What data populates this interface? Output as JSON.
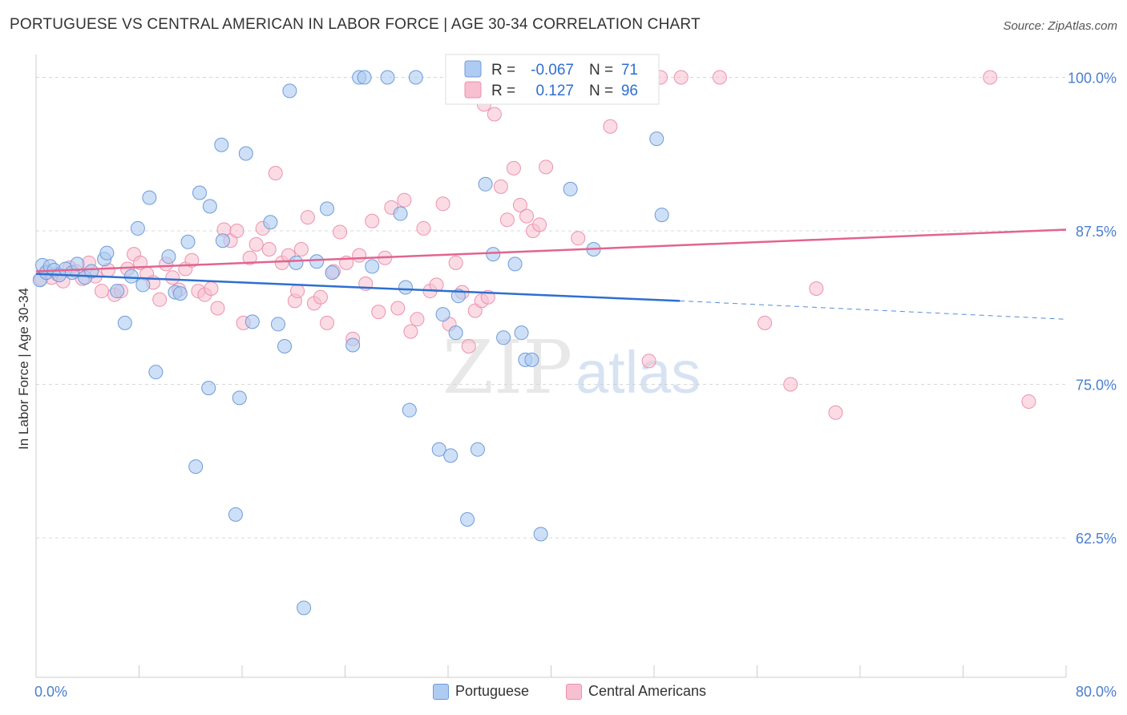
{
  "title": "PORTUGUESE VS CENTRAL AMERICAN IN LABOR FORCE | AGE 30-34 CORRELATION CHART",
  "source": "Source: ZipAtlas.com",
  "watermark": {
    "zip": "ZIP",
    "atlas": "atlas"
  },
  "colors": {
    "portuguese_fill": "#aecbf1",
    "portuguese_stroke": "#6f9bd8",
    "portuguese_line": "#2e6fd1",
    "central_fill": "#f7bfd0",
    "central_stroke": "#ec92ad",
    "central_line": "#e2648f",
    "tick_label": "#4a7fd0",
    "grid": "#d8d8d8"
  },
  "legend": {
    "rows": [
      {
        "r_label": "R =",
        "r_value": "-0.067",
        "n_label": "N =",
        "n_value": "71"
      },
      {
        "r_label": "R =",
        "r_value": "0.127",
        "n_label": "N =",
        "n_value": "96"
      }
    ]
  },
  "chart_data": {
    "type": "scatter",
    "title": "PORTUGUESE VS CENTRAL AMERICAN IN LABOR FORCE | AGE 30-34 CORRELATION CHART",
    "xlabel": "",
    "ylabel": "In Labor Force | Age 30-34",
    "xlim": [
      0,
      80
    ],
    "ylim": [
      52.5,
      101.5
    ],
    "x_tick_labels": [
      "0.0%",
      "80.0%"
    ],
    "y_ticks": [
      62.5,
      75.0,
      87.5,
      100.0
    ],
    "y_tick_labels": [
      "62.5%",
      "75.0%",
      "87.5%",
      "100.0%"
    ],
    "grid": "horizontal dashed",
    "legend_position": "top-center",
    "series": [
      {
        "name": "Portuguese",
        "r": -0.067,
        "n": 71,
        "trend": {
          "x0": 0,
          "y0": 84.0,
          "x1": 50,
          "y1": 81.8,
          "dashed_to_x": 80,
          "dashed_to_y": 80.3
        },
        "points": [
          [
            0.3,
            83.5
          ],
          [
            0.5,
            84.7
          ],
          [
            0.8,
            84.1
          ],
          [
            1.1,
            84.6
          ],
          [
            1.4,
            84.3
          ],
          [
            1.8,
            83.9
          ],
          [
            2.3,
            84.4
          ],
          [
            2.8,
            84.1
          ],
          [
            3.2,
            84.8
          ],
          [
            3.8,
            83.7
          ],
          [
            4.3,
            84.2
          ],
          [
            5.3,
            85.2
          ],
          [
            5.5,
            85.7
          ],
          [
            6.3,
            82.6
          ],
          [
            6.9,
            80.0
          ],
          [
            7.4,
            83.8
          ],
          [
            7.9,
            87.7
          ],
          [
            8.3,
            83.1
          ],
          [
            8.8,
            90.2
          ],
          [
            9.3,
            76.0
          ],
          [
            10.3,
            85.4
          ],
          [
            10.8,
            82.5
          ],
          [
            11.2,
            82.4
          ],
          [
            11.8,
            86.6
          ],
          [
            12.4,
            68.3
          ],
          [
            12.7,
            90.6
          ],
          [
            13.4,
            74.7
          ],
          [
            13.5,
            89.5
          ],
          [
            14.4,
            94.5
          ],
          [
            14.5,
            86.7
          ],
          [
            15.5,
            64.4
          ],
          [
            15.8,
            73.9
          ],
          [
            16.3,
            93.8
          ],
          [
            16.8,
            80.1
          ],
          [
            18.2,
            88.2
          ],
          [
            18.8,
            79.9
          ],
          [
            19.3,
            78.1
          ],
          [
            19.7,
            98.9
          ],
          [
            20.2,
            84.9
          ],
          [
            20.8,
            56.8
          ],
          [
            21.8,
            85.0
          ],
          [
            22.6,
            89.3
          ],
          [
            23.0,
            84.1
          ],
          [
            24.6,
            78.2
          ],
          [
            25.1,
            100.0
          ],
          [
            25.5,
            100.0
          ],
          [
            26.1,
            84.6
          ],
          [
            27.3,
            100.0
          ],
          [
            28.3,
            88.9
          ],
          [
            28.7,
            82.9
          ],
          [
            29.0,
            72.9
          ],
          [
            29.5,
            100.0
          ],
          [
            31.3,
            69.7
          ],
          [
            31.6,
            80.7
          ],
          [
            32.2,
            69.2
          ],
          [
            32.6,
            79.2
          ],
          [
            32.8,
            82.2
          ],
          [
            33.5,
            64.0
          ],
          [
            34.3,
            69.7
          ],
          [
            34.9,
            91.3
          ],
          [
            35.5,
            85.6
          ],
          [
            36.3,
            78.8
          ],
          [
            37.2,
            84.8
          ],
          [
            37.7,
            79.2
          ],
          [
            38.0,
            77.0
          ],
          [
            38.5,
            77.0
          ],
          [
            39.2,
            62.8
          ],
          [
            41.5,
            90.9
          ],
          [
            43.3,
            86.0
          ],
          [
            48.2,
            95.0
          ],
          [
            48.6,
            88.8
          ]
        ]
      },
      {
        "name": "Central Americans",
        "r": 0.127,
        "n": 96,
        "trend": {
          "x0": 0,
          "y0": 84.2,
          "x1": 80,
          "y1": 87.6
        },
        "points": [
          [
            0.4,
            83.6
          ],
          [
            0.8,
            84.2
          ],
          [
            1.2,
            83.7
          ],
          [
            1.6,
            84.0
          ],
          [
            2.1,
            83.4
          ],
          [
            2.6,
            84.5
          ],
          [
            3.1,
            84.2
          ],
          [
            3.6,
            83.6
          ],
          [
            4.1,
            84.9
          ],
          [
            4.6,
            83.8
          ],
          [
            5.1,
            82.6
          ],
          [
            5.6,
            84.3
          ],
          [
            6.1,
            82.3
          ],
          [
            6.6,
            82.6
          ],
          [
            7.1,
            84.4
          ],
          [
            7.6,
            85.6
          ],
          [
            8.1,
            84.9
          ],
          [
            8.6,
            84.0
          ],
          [
            9.1,
            83.3
          ],
          [
            9.6,
            81.9
          ],
          [
            10.1,
            84.8
          ],
          [
            10.6,
            83.7
          ],
          [
            11.1,
            82.7
          ],
          [
            11.6,
            84.4
          ],
          [
            12.1,
            85.1
          ],
          [
            12.6,
            82.6
          ],
          [
            13.1,
            82.3
          ],
          [
            13.6,
            82.8
          ],
          [
            14.1,
            81.2
          ],
          [
            14.6,
            87.6
          ],
          [
            15.1,
            86.7
          ],
          [
            15.6,
            87.5
          ],
          [
            16.1,
            80.0
          ],
          [
            16.6,
            85.3
          ],
          [
            17.1,
            86.4
          ],
          [
            17.6,
            87.7
          ],
          [
            18.1,
            86.0
          ],
          [
            18.6,
            92.2
          ],
          [
            19.1,
            84.9
          ],
          [
            19.6,
            85.5
          ],
          [
            20.1,
            81.8
          ],
          [
            20.6,
            86.0
          ],
          [
            21.1,
            88.6
          ],
          [
            21.6,
            81.6
          ],
          [
            22.1,
            82.1
          ],
          [
            22.6,
            80.0
          ],
          [
            23.1,
            84.2
          ],
          [
            23.6,
            87.4
          ],
          [
            24.1,
            84.9
          ],
          [
            24.6,
            78.7
          ],
          [
            25.1,
            85.5
          ],
          [
            25.6,
            83.2
          ],
          [
            26.1,
            88.3
          ],
          [
            26.6,
            80.9
          ],
          [
            27.1,
            85.3
          ],
          [
            27.6,
            89.4
          ],
          [
            28.1,
            81.2
          ],
          [
            28.6,
            90.0
          ],
          [
            29.1,
            79.3
          ],
          [
            29.6,
            80.3
          ],
          [
            30.1,
            87.7
          ],
          [
            30.6,
            82.6
          ],
          [
            31.1,
            83.1
          ],
          [
            31.6,
            89.7
          ],
          [
            32.1,
            79.9
          ],
          [
            32.6,
            84.9
          ],
          [
            33.1,
            82.5
          ],
          [
            33.6,
            78.1
          ],
          [
            34.1,
            81.0
          ],
          [
            34.6,
            81.8
          ],
          [
            35.1,
            82.1
          ],
          [
            35.6,
            97.0
          ],
          [
            36.1,
            91.1
          ],
          [
            36.6,
            88.4
          ],
          [
            37.1,
            92.6
          ],
          [
            37.6,
            89.6
          ],
          [
            38.1,
            88.7
          ],
          [
            38.6,
            87.5
          ],
          [
            39.1,
            88.0
          ],
          [
            39.6,
            92.7
          ],
          [
            42.1,
            86.9
          ],
          [
            44.6,
            96.0
          ],
          [
            46.1,
            100.0
          ],
          [
            47.6,
            76.9
          ],
          [
            48.5,
            100.0
          ],
          [
            50.1,
            100.0
          ],
          [
            53.1,
            100.0
          ],
          [
            56.6,
            80.0
          ],
          [
            58.6,
            75.0
          ],
          [
            60.6,
            82.8
          ],
          [
            62.1,
            72.7
          ],
          [
            77.1,
            73.6
          ],
          [
            74.1,
            100.0
          ],
          [
            34.8,
            97.8
          ],
          [
            41.0,
            100.0
          ],
          [
            20.3,
            82.6
          ]
        ]
      }
    ]
  },
  "bottom_legend": [
    {
      "label": "Portuguese"
    },
    {
      "label": "Central Americans"
    }
  ]
}
